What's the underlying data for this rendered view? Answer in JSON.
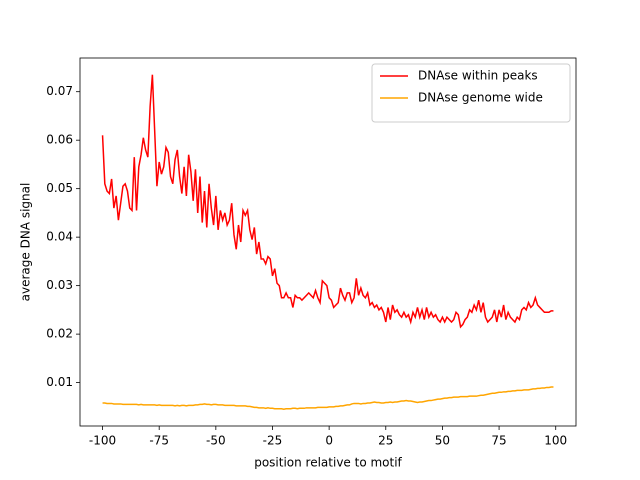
{
  "chart_data": {
    "type": "line",
    "xlabel": "position relative to motif",
    "ylabel": "average DNA signal",
    "xlim": [
      -109.95,
      108.95
    ],
    "ylim": [
      0.00105,
      0.07695
    ],
    "xticks": [
      -100,
      -75,
      -50,
      -25,
      0,
      25,
      50,
      75,
      100
    ],
    "yticks": [
      0.01,
      0.02,
      0.03,
      0.04,
      0.05,
      0.06,
      0.07
    ],
    "legend": "upper right",
    "x": [
      -100,
      -99,
      -98,
      -97,
      -96,
      -95,
      -94,
      -93,
      -92,
      -91,
      -90,
      -89,
      -88,
      -87,
      -86,
      -85,
      -84,
      -83,
      -82,
      -81,
      -80,
      -79,
      -78,
      -77,
      -76,
      -75,
      -74,
      -73,
      -72,
      -71,
      -70,
      -69,
      -68,
      -67,
      -66,
      -65,
      -64,
      -63,
      -62,
      -61,
      -60,
      -59,
      -58,
      -57,
      -56,
      -55,
      -54,
      -53,
      -52,
      -51,
      -50,
      -49,
      -48,
      -47,
      -46,
      -45,
      -44,
      -43,
      -42,
      -41,
      -40,
      -39,
      -38,
      -37,
      -36,
      -35,
      -34,
      -33,
      -32,
      -31,
      -30,
      -29,
      -28,
      -27,
      -26,
      -25,
      -24,
      -23,
      -22,
      -21,
      -20,
      -19,
      -18,
      -17,
      -16,
      -15,
      -14,
      -13,
      -12,
      -11,
      -10,
      -9,
      -8,
      -7,
      -6,
      -5,
      -4,
      -3,
      -2,
      -1,
      0,
      1,
      2,
      3,
      4,
      5,
      6,
      7,
      8,
      9,
      10,
      11,
      12,
      13,
      14,
      15,
      16,
      17,
      18,
      19,
      20,
      21,
      22,
      23,
      24,
      25,
      26,
      27,
      28,
      29,
      30,
      31,
      32,
      33,
      34,
      35,
      36,
      37,
      38,
      39,
      40,
      41,
      42,
      43,
      44,
      45,
      46,
      47,
      48,
      49,
      50,
      51,
      52,
      53,
      54,
      55,
      56,
      57,
      58,
      59,
      60,
      61,
      62,
      63,
      64,
      65,
      66,
      67,
      68,
      69,
      70,
      71,
      72,
      73,
      74,
      75,
      76,
      77,
      78,
      79,
      80,
      81,
      82,
      83,
      84,
      85,
      86,
      87,
      88,
      89,
      90,
      91,
      92,
      93,
      94,
      95,
      96,
      97,
      98,
      99
    ],
    "series": [
      {
        "name": "DNAse within peaks",
        "color": "#ff0000",
        "values": [
          0.061,
          0.051,
          0.0495,
          0.049,
          0.052,
          0.046,
          0.0485,
          0.0435,
          0.047,
          0.0505,
          0.051,
          0.0495,
          0.046,
          0.0455,
          0.0565,
          0.0455,
          0.0545,
          0.057,
          0.0605,
          0.058,
          0.0565,
          0.067,
          0.0735,
          0.062,
          0.0505,
          0.0555,
          0.053,
          0.0545,
          0.0585,
          0.0575,
          0.0525,
          0.051,
          0.056,
          0.058,
          0.0525,
          0.049,
          0.0545,
          0.0485,
          0.057,
          0.0535,
          0.0475,
          0.054,
          0.045,
          0.0525,
          0.043,
          0.0495,
          0.042,
          0.051,
          0.046,
          0.0425,
          0.0485,
          0.0415,
          0.0455,
          0.0435,
          0.045,
          0.0425,
          0.0435,
          0.047,
          0.0405,
          0.0375,
          0.0425,
          0.039,
          0.0455,
          0.0445,
          0.0455,
          0.0415,
          0.0395,
          0.042,
          0.0365,
          0.039,
          0.0355,
          0.0355,
          0.0345,
          0.036,
          0.0355,
          0.032,
          0.0335,
          0.0305,
          0.03,
          0.0275,
          0.0275,
          0.0285,
          0.0275,
          0.0275,
          0.0255,
          0.028,
          0.0275,
          0.0275,
          0.027,
          0.0275,
          0.028,
          0.0285,
          0.028,
          0.0275,
          0.029,
          0.0275,
          0.0265,
          0.031,
          0.0305,
          0.03,
          0.0275,
          0.027,
          0.0255,
          0.026,
          0.0265,
          0.0295,
          0.028,
          0.027,
          0.0285,
          0.0285,
          0.0265,
          0.0275,
          0.0315,
          0.028,
          0.0295,
          0.028,
          0.0275,
          0.0285,
          0.026,
          0.0265,
          0.0255,
          0.026,
          0.025,
          0.0255,
          0.0245,
          0.0225,
          0.0255,
          0.023,
          0.026,
          0.0245,
          0.025,
          0.024,
          0.0235,
          0.0245,
          0.0235,
          0.024,
          0.0225,
          0.0245,
          0.0235,
          0.0255,
          0.0235,
          0.025,
          0.023,
          0.0255,
          0.0235,
          0.0245,
          0.0235,
          0.024,
          0.023,
          0.0225,
          0.0235,
          0.0225,
          0.0235,
          0.023,
          0.0225,
          0.023,
          0.0245,
          0.024,
          0.0215,
          0.022,
          0.023,
          0.0235,
          0.025,
          0.0245,
          0.026,
          0.025,
          0.027,
          0.0245,
          0.0265,
          0.0235,
          0.0225,
          0.023,
          0.0235,
          0.025,
          0.0225,
          0.025,
          0.0235,
          0.026,
          0.023,
          0.0245,
          0.0235,
          0.023,
          0.0225,
          0.0235,
          0.023,
          0.025,
          0.0255,
          0.025,
          0.0265,
          0.0255,
          0.026,
          0.0275,
          0.026,
          0.0255,
          0.025,
          0.0245,
          0.0245,
          0.0245,
          0.0248,
          0.0248
        ]
      },
      {
        "name": "DNAse genome wide",
        "color": "#ffa500",
        "values": [
          0.0058,
          0.0058,
          0.0057,
          0.0057,
          0.0057,
          0.0056,
          0.0056,
          0.0056,
          0.0056,
          0.0055,
          0.0055,
          0.0055,
          0.0055,
          0.0055,
          0.0055,
          0.0055,
          0.0054,
          0.0055,
          0.0054,
          0.0054,
          0.0054,
          0.0054,
          0.0054,
          0.0054,
          0.0053,
          0.0054,
          0.0053,
          0.0053,
          0.0053,
          0.0053,
          0.0053,
          0.0053,
          0.0052,
          0.0053,
          0.0052,
          0.0053,
          0.0053,
          0.0052,
          0.0053,
          0.0053,
          0.0053,
          0.0054,
          0.0054,
          0.0055,
          0.0055,
          0.0056,
          0.0055,
          0.0055,
          0.0054,
          0.0055,
          0.0055,
          0.0054,
          0.0054,
          0.0054,
          0.0053,
          0.0053,
          0.0053,
          0.0053,
          0.0053,
          0.0052,
          0.0052,
          0.0052,
          0.0052,
          0.0052,
          0.0051,
          0.0051,
          0.005,
          0.0049,
          0.0049,
          0.0048,
          0.0048,
          0.0048,
          0.0047,
          0.0048,
          0.0047,
          0.0047,
          0.0046,
          0.0046,
          0.0046,
          0.0046,
          0.0045,
          0.0046,
          0.0046,
          0.0046,
          0.0047,
          0.0047,
          0.0046,
          0.0047,
          0.0047,
          0.0047,
          0.0048,
          0.0048,
          0.0048,
          0.0048,
          0.0048,
          0.0049,
          0.0049,
          0.0049,
          0.0049,
          0.0049,
          0.005,
          0.005,
          0.005,
          0.0051,
          0.0051,
          0.0052,
          0.0052,
          0.0053,
          0.0054,
          0.0054,
          0.0056,
          0.0057,
          0.0057,
          0.0057,
          0.0056,
          0.0057,
          0.0057,
          0.0058,
          0.0058,
          0.0059,
          0.006,
          0.0059,
          0.0059,
          0.0058,
          0.0058,
          0.0059,
          0.0059,
          0.006,
          0.0059,
          0.006,
          0.006,
          0.0061,
          0.0062,
          0.0062,
          0.0063,
          0.0062,
          0.0062,
          0.0061,
          0.006,
          0.0059,
          0.006,
          0.006,
          0.0061,
          0.0062,
          0.0063,
          0.0063,
          0.0064,
          0.0065,
          0.0066,
          0.0066,
          0.0067,
          0.0068,
          0.0068,
          0.0069,
          0.0069,
          0.007,
          0.007,
          0.007,
          0.0071,
          0.0071,
          0.0071,
          0.0071,
          0.0072,
          0.0072,
          0.0072,
          0.0072,
          0.0073,
          0.0074,
          0.0074,
          0.0075,
          0.0076,
          0.0077,
          0.0078,
          0.0078,
          0.0079,
          0.008,
          0.008,
          0.0081,
          0.0081,
          0.0082,
          0.0082,
          0.0083,
          0.0083,
          0.0084,
          0.0084,
          0.0084,
          0.0085,
          0.0085,
          0.0085,
          0.0086,
          0.0087,
          0.0087,
          0.0088,
          0.0088,
          0.0089,
          0.0089,
          0.009,
          0.009,
          0.0091,
          0.0091
        ]
      }
    ]
  }
}
